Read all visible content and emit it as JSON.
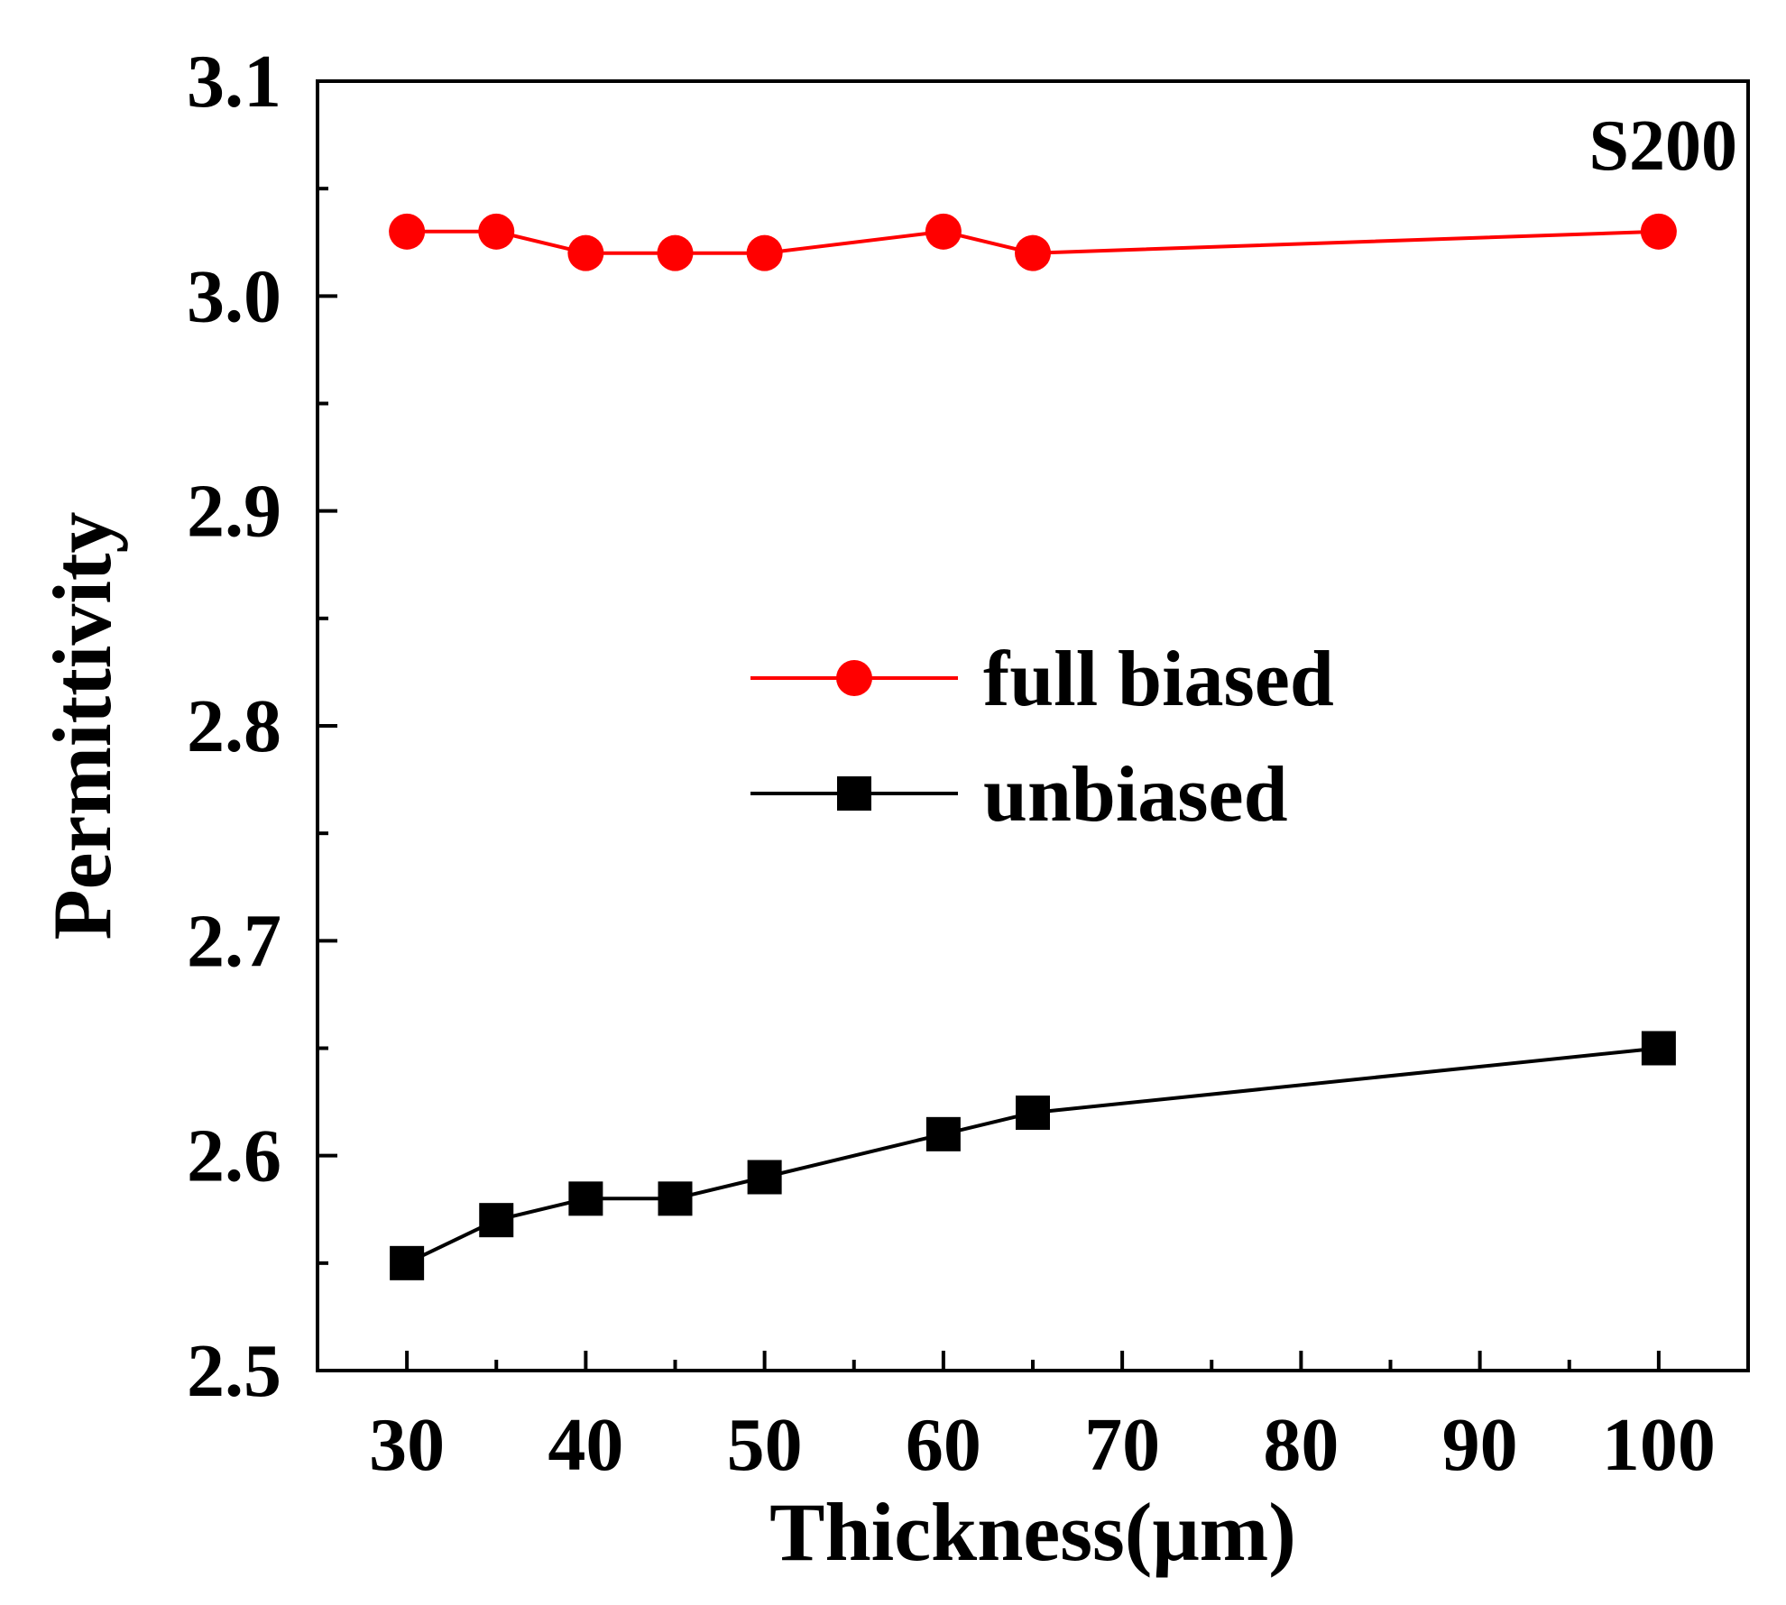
{
  "chart_data": {
    "type": "line",
    "title": "",
    "xlabel": "Thickness(μm)",
    "ylabel": "Permittivity",
    "xlim": [
      25,
      105
    ],
    "ylim": [
      2.5,
      3.1
    ],
    "xticks": [
      "30",
      "40",
      "50",
      "60",
      "70",
      "80",
      "90",
      "100"
    ],
    "yticks": [
      "2.5",
      "2.6",
      "2.7",
      "2.8",
      "2.9",
      "3.0",
      "3.1"
    ],
    "x": [
      30,
      35,
      40,
      45,
      50,
      60,
      65,
      100
    ],
    "series": [
      {
        "name": "full biased",
        "color": "#ff0000",
        "marker": "circle",
        "values": [
          3.03,
          3.03,
          3.02,
          3.02,
          3.02,
          3.03,
          3.02,
          3.03
        ]
      },
      {
        "name": "unbiased",
        "color": "#000000",
        "marker": "square",
        "values": [
          2.55,
          2.57,
          2.58,
          2.58,
          2.59,
          2.61,
          2.62,
          2.65
        ]
      }
    ],
    "annotation": "S200",
    "legend_position": "center",
    "grid": false
  }
}
